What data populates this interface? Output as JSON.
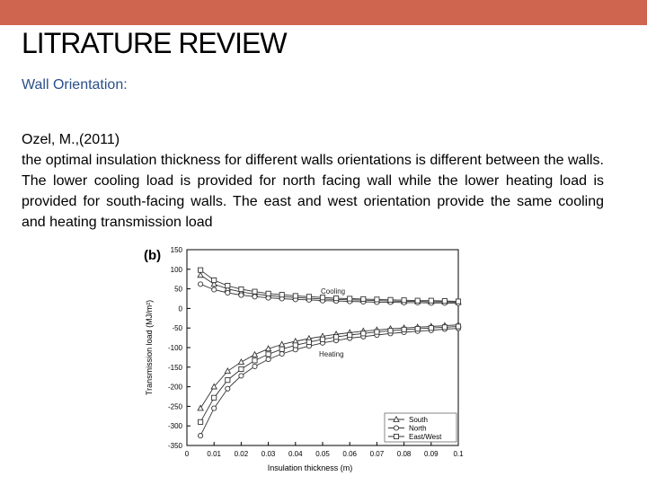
{
  "slide": {
    "title": "LITRATURE REVIEW",
    "subtitle": "Wall Orientation:",
    "citation": "Ozel, M.,(2011)",
    "paragraph": "the optimal insulation thickness for different walls orientations is different between the walls. The lower cooling load is provided for north facing wall while the lower heating load is provided for south-facing walls. The east and west orientation provide the same cooling and heating transmission load",
    "colors": {
      "header_bar": "#d0654f",
      "subtitle": "#2a4f8a"
    }
  },
  "chart_data": {
    "type": "line",
    "panel_label": "(b)",
    "xlabel": "Insulation thickness (m)",
    "ylabel": "Transmission load (MJ/m²)",
    "xlim": [
      0,
      0.1
    ],
    "ylim": [
      -350,
      150
    ],
    "xticks": [
      "0",
      "0.01",
      "0.02",
      "0.03",
      "0.04",
      "0.05",
      "0.06",
      "0.07",
      "0.08",
      "0.09",
      "0.1"
    ],
    "yticks": [
      "150",
      "100",
      "50",
      "0",
      "-50",
      "-100",
      "-150",
      "-200",
      "-250",
      "-300",
      "-350"
    ],
    "annotations": [
      "Cooling",
      "Heating"
    ],
    "legend_position": "bottom-right",
    "x": [
      0.005,
      0.01,
      0.015,
      0.02,
      0.025,
      0.03,
      0.035,
      0.04,
      0.045,
      0.05,
      0.055,
      0.06,
      0.065,
      0.07,
      0.075,
      0.08,
      0.085,
      0.09,
      0.095,
      0.1
    ],
    "series": [
      {
        "name": "South",
        "marker": "triangle",
        "group": "cooling",
        "values": [
          85,
          62,
          50,
          42,
          37,
          33,
          30,
          28,
          26,
          24,
          23,
          22,
          21,
          20,
          19,
          18,
          18,
          17,
          17,
          16
        ]
      },
      {
        "name": "North",
        "marker": "circle",
        "group": "cooling",
        "values": [
          62,
          48,
          40,
          34,
          30,
          27,
          25,
          23,
          22,
          20,
          19,
          18,
          17,
          16,
          16,
          15,
          15,
          14,
          14,
          13
        ]
      },
      {
        "name": "East/West",
        "marker": "square",
        "group": "cooling",
        "values": [
          98,
          72,
          58,
          49,
          43,
          38,
          35,
          32,
          30,
          28,
          26,
          25,
          24,
          23,
          22,
          21,
          20,
          20,
          19,
          18
        ]
      },
      {
        "name": "South",
        "marker": "triangle",
        "group": "heating",
        "values": [
          -255,
          -200,
          -160,
          -137,
          -118,
          -103,
          -92,
          -84,
          -77,
          -71,
          -66,
          -62,
          -58,
          -55,
          -52,
          -50,
          -48,
          -46,
          -44,
          -42
        ]
      },
      {
        "name": "North",
        "marker": "circle",
        "group": "heating",
        "values": [
          -325,
          -255,
          -205,
          -172,
          -148,
          -130,
          -116,
          -105,
          -96,
          -88,
          -82,
          -76,
          -72,
          -68,
          -64,
          -61,
          -58,
          -56,
          -53,
          -51
        ]
      },
      {
        "name": "East/West",
        "marker": "square",
        "group": "heating",
        "values": [
          -290,
          -228,
          -183,
          -155,
          -133,
          -117,
          -104,
          -94,
          -86,
          -79,
          -73,
          -68,
          -64,
          -60,
          -57,
          -54,
          -52,
          -50,
          -48,
          -46
        ]
      }
    ],
    "legend": [
      {
        "name": "South",
        "marker": "triangle"
      },
      {
        "name": "North",
        "marker": "circle"
      },
      {
        "name": "East/West",
        "marker": "square"
      }
    ]
  }
}
